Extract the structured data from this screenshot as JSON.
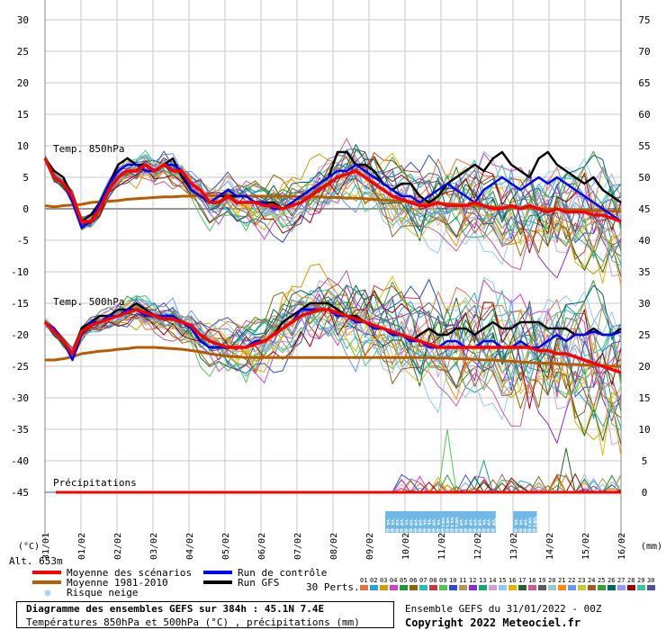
{
  "chart_data": {
    "type": "line",
    "title": "Diagramme des ensembles GEFS sur 384h : 45.1N 7.4E",
    "subtitle": "Températures 850hPa et 500hPa (°C) , précipitations (mm)",
    "left_axis": {
      "unit": "(°C)",
      "ticks": [
        30,
        25,
        20,
        15,
        10,
        5,
        0,
        -5,
        -10,
        -15,
        -20,
        -25,
        -30,
        -35,
        -40,
        -45
      ]
    },
    "right_axis": {
      "unit": "(mm)",
      "ticks": [
        75,
        70,
        65,
        60,
        55,
        50,
        45,
        40,
        35,
        30,
        25,
        20,
        15,
        10,
        5,
        0
      ]
    },
    "ylim": [
      -48,
      32
    ],
    "x_ticks": [
      "31/01",
      "01/02",
      "02/02",
      "03/02",
      "04/02",
      "05/02",
      "06/02",
      "07/02",
      "08/02",
      "09/02",
      "10/02",
      "11/02",
      "12/02",
      "13/02",
      "14/02",
      "15/02",
      "16/02"
    ],
    "panels": {
      "t850": "Temp. 850hPa",
      "t500": "Temp. 500hPa",
      "precip": "Précipitations"
    },
    "altitude": "Alt. 653m",
    "series_850": {
      "mean_scenarios": [
        8,
        5,
        4,
        2,
        -2,
        -2,
        0,
        3,
        5,
        6,
        6,
        7,
        6,
        7,
        6,
        6,
        4,
        3,
        1,
        1,
        2,
        1,
        1,
        1,
        0.5,
        0.5,
        0,
        0.5,
        1,
        2,
        3,
        4,
        5,
        5.5,
        6,
        5,
        4,
        3,
        2,
        1.5,
        1,
        0.5,
        0.5,
        1,
        0.5,
        0.5,
        0.5,
        1,
        0.5,
        0,
        0,
        0.5,
        0,
        0.5,
        0,
        -0.5,
        0,
        -0.5,
        -0.5,
        -0.5,
        -1,
        -1,
        -1.5,
        -2
      ],
      "climatology": [
        0.5,
        0.3,
        0.5,
        0.6,
        0.7,
        1,
        1.1,
        1.2,
        1.3,
        1.5,
        1.6,
        1.7,
        1.8,
        1.9,
        1.9,
        2,
        2,
        2.1,
        2.1,
        2.1,
        2.1,
        2.1,
        2,
        2,
        2,
        2,
        2,
        2,
        1.9,
        1.9,
        1.9,
        1.8,
        1.8,
        1.7,
        1.7,
        1.6,
        1.5,
        1.4,
        1.3,
        1.2,
        1.1,
        1,
        0.9,
        0.8,
        0.8,
        0.7,
        0.6,
        0.5,
        0.4,
        0.3,
        0.3,
        0.2,
        0.1,
        0.1,
        0,
        0,
        -0.1,
        -0.1,
        -0.2,
        -0.2,
        -0.3,
        -0.3,
        -0.4,
        -0.4
      ],
      "control": [
        8,
        5,
        4,
        1,
        -3,
        -2,
        1,
        4,
        6,
        7,
        7,
        6,
        6,
        7,
        7,
        6,
        3,
        2,
        1,
        2,
        3,
        2,
        2,
        1,
        1,
        0,
        0,
        1,
        2,
        3,
        4,
        5,
        6,
        6,
        7,
        6,
        5,
        4,
        3,
        2,
        2,
        1,
        2,
        3,
        4,
        3,
        2,
        1,
        3,
        4,
        5,
        4,
        3,
        4,
        5,
        4,
        5,
        4,
        3,
        2,
        1,
        0,
        -1,
        -2
      ],
      "gfs": [
        8,
        6,
        5,
        2,
        -2,
        -1,
        1,
        4,
        7,
        8,
        7,
        7,
        6,
        7,
        8,
        5,
        3,
        2,
        1,
        2,
        2,
        2,
        2,
        1,
        1,
        1,
        0,
        1,
        2,
        3,
        4,
        5,
        9,
        9,
        7,
        7,
        6,
        4,
        3,
        4,
        4,
        2,
        1,
        2,
        4,
        5,
        6,
        7,
        6,
        8,
        9,
        7,
        6,
        5,
        8,
        9,
        7,
        6,
        5,
        4,
        5,
        3,
        2,
        1
      ]
    },
    "series_500": {
      "mean_scenarios": [
        -18,
        -19.5,
        -21,
        -23,
        -19.5,
        -18.5,
        -18,
        -17.5,
        -17,
        -16.5,
        -16,
        -16.5,
        -17,
        -17.5,
        -17.5,
        -18,
        -18.5,
        -20,
        -21,
        -21.5,
        -22,
        -22,
        -22,
        -21.5,
        -21,
        -20,
        -19,
        -18,
        -17,
        -16.5,
        -16,
        -16,
        -16.5,
        -17,
        -17.5,
        -18,
        -18.5,
        -19,
        -19.5,
        -20,
        -20.5,
        -21,
        -21.5,
        -22,
        -22,
        -22,
        -22,
        -22,
        -22,
        -22,
        -22,
        -22,
        -22,
        -22,
        -22.5,
        -22.5,
        -23,
        -23,
        -23.5,
        -24,
        -24.5,
        -25,
        -25.5,
        -26
      ],
      "climatology": [
        -24,
        -24,
        -23.8,
        -23.5,
        -23,
        -22.8,
        -22.6,
        -22.5,
        -22.3,
        -22.2,
        -22,
        -22,
        -22,
        -22.1,
        -22.2,
        -22.3,
        -22.5,
        -22.7,
        -23,
        -23.2,
        -23.4,
        -23.5,
        -23.6,
        -23.6,
        -23.6,
        -23.6,
        -23.6,
        -23.6,
        -23.6,
        -23.6,
        -23.6,
        -23.6,
        -23.6,
        -23.6,
        -23.6,
        -23.6,
        -23.6,
        -23.6,
        -23.6,
        -23.6,
        -23.6,
        -23.6,
        -23.6,
        -23.7,
        -23.7,
        -23.8,
        -23.8,
        -23.9,
        -24,
        -24,
        -24.1,
        -24.2,
        -24.3,
        -24.4,
        -24.5,
        -24.5,
        -24.6,
        -24.7,
        -24.7,
        -24.8,
        -24.8,
        -24.9,
        -25,
        -25
      ],
      "control": [
        -18,
        -19,
        -21,
        -24,
        -20,
        -18,
        -18,
        -17,
        -17,
        -16,
        -16,
        -17,
        -17,
        -17,
        -17,
        -18,
        -19,
        -21,
        -22,
        -22,
        -22,
        -22,
        -22,
        -21,
        -21,
        -20,
        -19,
        -18,
        -16,
        -16,
        -16,
        -16,
        -17,
        -17,
        -18,
        -18,
        -19,
        -19,
        -20,
        -20,
        -21,
        -21,
        -22,
        -22,
        -21,
        -21,
        -22,
        -22,
        -21,
        -21,
        -22,
        -22,
        -21,
        -22,
        -22,
        -21,
        -20,
        -21,
        -20,
        -20,
        -19.5,
        -20,
        -20,
        -19.5
      ],
      "gfs": [
        -18,
        -19,
        -21,
        -23,
        -19,
        -18,
        -17,
        -17,
        -16,
        -16,
        -15,
        -16,
        -17,
        -17,
        -17,
        -18,
        -19,
        -21,
        -22,
        -22,
        -22,
        -22,
        -22,
        -21,
        -21,
        -20,
        -18,
        -17,
        -16,
        -15,
        -15,
        -15,
        -16,
        -17,
        -17,
        -18,
        -19,
        -19,
        -20,
        -20,
        -21,
        -20,
        -19,
        -20,
        -20,
        -19,
        -19,
        -20,
        -19,
        -18,
        -19,
        -19,
        -18,
        -18,
        -18,
        -19,
        -19,
        -19,
        -20,
        -20,
        -19,
        -20,
        -20,
        -19
      ]
    },
    "snow_risk_labels": [
      {
        "pos": 37.5,
        "text": "3%"
      },
      {
        "pos": 38,
        "text": "3%"
      },
      {
        "pos": 38.5,
        "text": "6%"
      },
      {
        "pos": 39,
        "text": "6%"
      },
      {
        "pos": 39.5,
        "text": "3%"
      },
      {
        "pos": 40,
        "text": "6%"
      },
      {
        "pos": 40.5,
        "text": "6%"
      },
      {
        "pos": 41,
        "text": "6%"
      },
      {
        "pos": 41.5,
        "text": "3%"
      },
      {
        "pos": 42,
        "text": "3%"
      },
      {
        "pos": 42.5,
        "text": "6%"
      },
      {
        "pos": 43,
        "text": "3%"
      },
      {
        "pos": 43.5,
        "text": "10%"
      },
      {
        "pos": 44,
        "text": "10%"
      },
      {
        "pos": 44.5,
        "text": "13%"
      },
      {
        "pos": 45,
        "text": "10%"
      },
      {
        "pos": 45.5,
        "text": "6%"
      },
      {
        "pos": 46,
        "text": "3%"
      },
      {
        "pos": 46.5,
        "text": "6%"
      },
      {
        "pos": 47,
        "text": "6%"
      },
      {
        "pos": 47.5,
        "text": "6%"
      },
      {
        "pos": 48,
        "text": "3%"
      },
      {
        "pos": 48.5,
        "text": "6%"
      },
      {
        "pos": 49,
        "text": "6%"
      },
      {
        "pos": 51.5,
        "text": "3%"
      },
      {
        "pos": 52,
        "text": "3%"
      },
      {
        "pos": 52.5,
        "text": "6%"
      },
      {
        "pos": 53,
        "text": "10%"
      },
      {
        "pos": 53.5,
        "text": "10%"
      }
    ],
    "legend": {
      "mean_scenarios": "Moyenne des scénarios",
      "climatology": "Moyenne 1981-2010",
      "snow_risk": "Risque neige",
      "control": "Run de contrôle",
      "gfs": "Run GFS",
      "perturbations_label": "30 Perts.",
      "perturbation_ids": [
        "01",
        "02",
        "03",
        "04",
        "05",
        "06",
        "07",
        "08",
        "09",
        "10",
        "11",
        "12",
        "13",
        "14",
        "15",
        "16",
        "17",
        "18",
        "19",
        "20",
        "21",
        "22",
        "23",
        "24",
        "25",
        "26",
        "27",
        "28",
        "29",
        "30"
      ]
    },
    "colors": {
      "mean_scenarios": "#ff0000",
      "climatology": "#b85c00",
      "control": "#0000ff",
      "gfs": "#000000",
      "zero_line": "#999999",
      "grid": "#c8c8c8",
      "snow_risk": "#6fb8e8",
      "perturbations": [
        "#e8723a",
        "#22a4d6",
        "#c8a000",
        "#d23dd2",
        "#1f9a3a",
        "#8a6a00",
        "#22c0c0",
        "#c83a3a",
        "#50c850",
        "#2850c8",
        "#b49650",
        "#8a2bd2",
        "#10a878",
        "#d2a0d2",
        "#90c8ff",
        "#e6b400",
        "#286428",
        "#c85a96",
        "#5a5a5a",
        "#96c8c8",
        "#ff8c00",
        "#6496ff",
        "#c8c832",
        "#a05a28",
        "#32a032",
        "#006464",
        "#9696ff",
        "#a00000",
        "#32c8a0",
        "#5050a0"
      ]
    },
    "footer": {
      "title": "Diagramme des ensembles GEFS sur 384h : 45.1N 7.4E",
      "subtitle": "Températures 850hPa et 500hPa (°C) , précipitations (mm)",
      "run_info": "Ensemble GEFS du 31/01/2022 - 00Z",
      "copyright": "Copyright 2022 Meteociel.fr"
    }
  }
}
